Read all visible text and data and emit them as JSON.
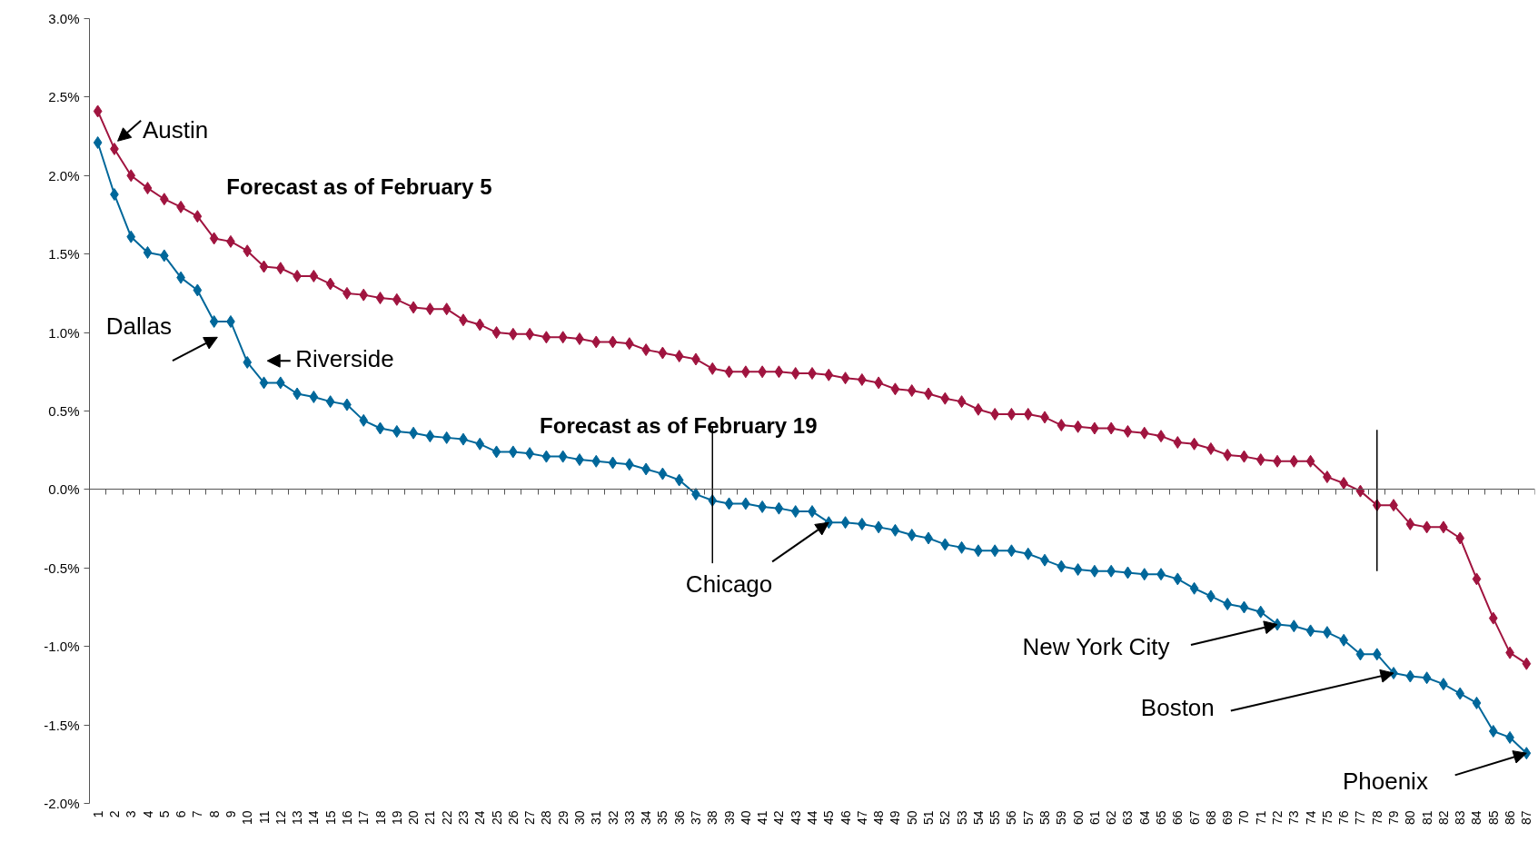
{
  "chart_data": {
    "type": "line",
    "x": [
      1,
      2,
      3,
      4,
      5,
      6,
      7,
      8,
      9,
      10,
      11,
      12,
      13,
      14,
      15,
      16,
      17,
      18,
      19,
      20,
      21,
      22,
      23,
      24,
      25,
      26,
      27,
      28,
      29,
      30,
      31,
      32,
      33,
      34,
      35,
      36,
      37,
      38,
      39,
      40,
      41,
      42,
      43,
      44,
      45,
      46,
      47,
      48,
      49,
      50,
      51,
      52,
      53,
      54,
      55,
      56,
      57,
      58,
      59,
      60,
      61,
      62,
      63,
      64,
      65,
      66,
      67,
      68,
      69,
      70,
      71,
      72,
      73,
      74,
      75,
      76,
      77,
      78,
      79,
      80,
      81,
      82,
      83,
      84,
      85,
      86,
      87
    ],
    "xlim": [
      0.5,
      87.5
    ],
    "xticks": [
      1,
      2,
      3,
      4,
      5,
      6,
      7,
      8,
      9,
      10,
      11,
      12,
      13,
      14,
      15,
      16,
      17,
      18,
      19,
      20,
      21,
      22,
      23,
      24,
      25,
      26,
      27,
      28,
      29,
      30,
      31,
      32,
      33,
      34,
      35,
      36,
      37,
      38,
      39,
      40,
      41,
      42,
      43,
      44,
      45,
      46,
      47,
      48,
      49,
      50,
      51,
      52,
      53,
      54,
      55,
      56,
      57,
      58,
      59,
      60,
      61,
      62,
      63,
      64,
      65,
      66,
      67,
      68,
      69,
      70,
      71,
      72,
      73,
      74,
      75,
      76,
      77,
      78,
      79,
      80,
      81,
      82,
      83,
      84,
      85,
      86,
      87
    ],
    "ylim": [
      -2.0,
      3.0
    ],
    "yticks": [
      {
        "value": -2.0,
        "label": "-2.0%"
      },
      {
        "value": -1.5,
        "label": "-1.5%"
      },
      {
        "value": -1.0,
        "label": "-1.0%"
      },
      {
        "value": -0.5,
        "label": "-0.5%"
      },
      {
        "value": 0.0,
        "label": "0.0%"
      },
      {
        "value": 0.5,
        "label": "0.5%"
      },
      {
        "value": 1.0,
        "label": "1.0%"
      },
      {
        "value": 1.5,
        "label": "1.5%"
      },
      {
        "value": 2.0,
        "label": "2.0%"
      },
      {
        "value": 2.5,
        "label": "2.5%"
      },
      {
        "value": 3.0,
        "label": "3.0%"
      }
    ],
    "marker": "diamond",
    "line_style": "solid",
    "series": [
      {
        "name": "Forecast as of February 5",
        "color": "#a0143f",
        "values": [
          2.41,
          2.17,
          2.0,
          1.92,
          1.85,
          1.8,
          1.74,
          1.6,
          1.58,
          1.52,
          1.42,
          1.41,
          1.36,
          1.36,
          1.31,
          1.25,
          1.24,
          1.22,
          1.21,
          1.16,
          1.15,
          1.15,
          1.08,
          1.05,
          1.0,
          0.99,
          0.99,
          0.97,
          0.97,
          0.96,
          0.94,
          0.94,
          0.93,
          0.89,
          0.87,
          0.85,
          0.83,
          0.77,
          0.75,
          0.75,
          0.75,
          0.75,
          0.74,
          0.74,
          0.73,
          0.71,
          0.7,
          0.68,
          0.64,
          0.63,
          0.61,
          0.58,
          0.56,
          0.51,
          0.48,
          0.48,
          0.48,
          0.46,
          0.41,
          0.4,
          0.39,
          0.39,
          0.37,
          0.36,
          0.34,
          0.3,
          0.29,
          0.26,
          0.22,
          0.21,
          0.19,
          0.18,
          0.18,
          0.18,
          0.08,
          0.04,
          -0.01,
          -0.1,
          -0.1,
          -0.22,
          -0.24,
          -0.24,
          -0.31,
          -0.57,
          -0.82,
          -1.04,
          -1.11
        ]
      },
      {
        "name": "Forecast as of February 19",
        "color": "#00679a",
        "values": [
          2.21,
          1.88,
          1.61,
          1.51,
          1.49,
          1.35,
          1.27,
          1.07,
          1.07,
          0.81,
          0.68,
          0.68,
          0.61,
          0.59,
          0.56,
          0.54,
          0.44,
          0.39,
          0.37,
          0.36,
          0.34,
          0.33,
          0.32,
          0.29,
          0.24,
          0.24,
          0.23,
          0.21,
          0.21,
          0.19,
          0.18,
          0.17,
          0.16,
          0.13,
          0.1,
          0.06,
          -0.03,
          -0.07,
          -0.09,
          -0.09,
          -0.11,
          -0.12,
          -0.14,
          -0.14,
          -0.21,
          -0.21,
          -0.22,
          -0.24,
          -0.26,
          -0.29,
          -0.31,
          -0.35,
          -0.37,
          -0.39,
          -0.39,
          -0.39,
          -0.41,
          -0.45,
          -0.49,
          -0.51,
          -0.52,
          -0.52,
          -0.53,
          -0.54,
          -0.54,
          -0.57,
          -0.63,
          -0.68,
          -0.73,
          -0.75,
          -0.78,
          -0.86,
          -0.87,
          -0.9,
          -0.91,
          -0.96,
          -1.05,
          -1.05,
          -1.17,
          -1.19,
          -1.2,
          -1.24,
          -1.3,
          -1.36,
          -1.54,
          -1.58,
          -1.68
        ]
      }
    ],
    "annotations": [
      {
        "text": "Austin",
        "x": 2,
        "y": 2.17
      },
      {
        "text": "Dallas",
        "x": 8,
        "y": 1.07
      },
      {
        "text": "Riverside",
        "x": 10,
        "y": 0.81
      },
      {
        "text": "Chicago",
        "x": 45,
        "y": -0.21
      },
      {
        "text": "New York City",
        "x": 72,
        "y": -0.86
      },
      {
        "text": "Boston",
        "x": 79,
        "y": -1.17
      },
      {
        "text": "Phoenix",
        "x": 87,
        "y": -1.68
      }
    ],
    "ref_lines": [
      {
        "axis": "x",
        "value": 38
      },
      {
        "axis": "x",
        "value": 78
      }
    ]
  }
}
